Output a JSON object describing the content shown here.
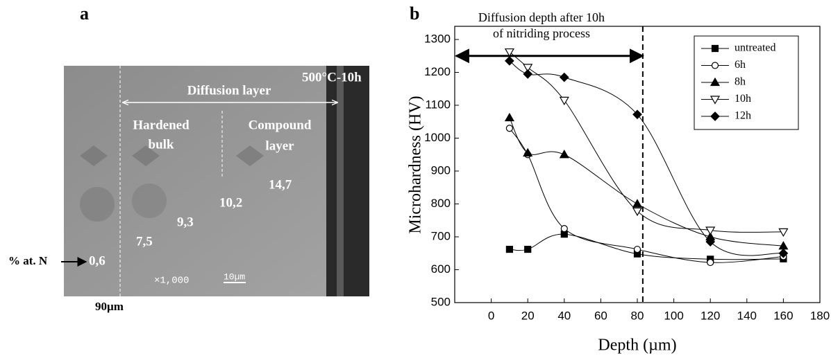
{
  "panel_a": {
    "label": "a",
    "condition": "500°C-10h",
    "diffusion": "Diffusion layer",
    "hardened": [
      "Hardened",
      "bulk"
    ],
    "compound": [
      "Compound",
      "layer"
    ],
    "values": [
      "14,7",
      "10,2",
      "9,3",
      "7,5",
      "0,6"
    ],
    "nitrogen": "% at. N",
    "depth": "90µm",
    "magnification": "×1,000",
    "scale": "10µm"
  },
  "chart_data": {
    "type": "line",
    "panel_label": "b",
    "annotation": [
      "Diffusion depth after 10h",
      "of nitriding process"
    ],
    "xlabel": "Depth (µm)",
    "ylabel": "Microhardness (HV)",
    "x": [
      10,
      20,
      40,
      80,
      120,
      160
    ],
    "series": [
      {
        "name": "untreated",
        "marker": "square",
        "values": [
          662,
          662,
          708,
          648,
          632,
          633
        ]
      },
      {
        "name": "6h",
        "marker": "circle",
        "values": [
          1030,
          950,
          725,
          662,
          622,
          640
        ]
      },
      {
        "name": "8h",
        "marker": "triangle",
        "values": [
          1062,
          955,
          950,
          800,
          700,
          672
        ]
      },
      {
        "name": "10h",
        "marker": "triangle-down",
        "values": [
          1262,
          1215,
          1115,
          778,
          720,
          715
        ]
      },
      {
        "name": "12h",
        "marker": "diamond",
        "values": [
          1235,
          1195,
          1185,
          1072,
          685,
          650
        ]
      }
    ],
    "xlim": [
      -20,
      180
    ],
    "xticks": [
      0,
      20,
      40,
      60,
      80,
      100,
      120,
      140,
      160,
      180
    ],
    "ylim": [
      500,
      1340
    ],
    "yticks": [
      500,
      600,
      700,
      800,
      900,
      1000,
      1100,
      1200,
      1300
    ],
    "reference_line": 83,
    "reference_arrow": {
      "x": [
        -20,
        83
      ],
      "y": 1250
    },
    "legend": "upper right",
    "color": "#000000"
  }
}
